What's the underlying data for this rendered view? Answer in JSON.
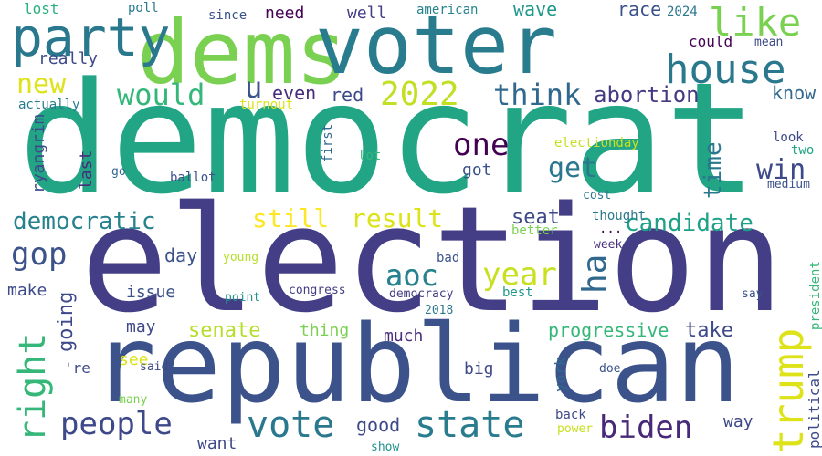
{
  "words": [
    {
      "text": "democrat",
      "color": "#21a585",
      "orient": "h"
    },
    {
      "text": "election",
      "color": "#433e85",
      "orient": "h"
    },
    {
      "text": "republican",
      "color": "#3b528b",
      "orient": "h"
    },
    {
      "text": "dems",
      "color": "#7ad151",
      "orient": "h"
    },
    {
      "text": "voter",
      "color": "#287c8e",
      "orient": "h"
    },
    {
      "text": "party",
      "color": "#2a788e",
      "orient": "h"
    },
    {
      "text": "house",
      "color": "#2a788e",
      "orient": "h"
    },
    {
      "text": "like",
      "color": "#7ad151",
      "orient": "h"
    },
    {
      "text": "new",
      "color": "#dde318",
      "orient": "h"
    },
    {
      "text": "would",
      "color": "#35b779",
      "orient": "h"
    },
    {
      "text": "u",
      "color": "#3b528b",
      "orient": "h"
    },
    {
      "text": "even",
      "color": "#472d7b",
      "orient": "h"
    },
    {
      "text": "red",
      "color": "#3e4989",
      "orient": "h"
    },
    {
      "text": "2022",
      "color": "#c2df23",
      "orient": "h"
    },
    {
      "text": "think",
      "color": "#31688e",
      "orient": "h"
    },
    {
      "text": "abortion",
      "color": "#443a83",
      "orient": "h"
    },
    {
      "text": "know",
      "color": "#31688e",
      "orient": "h"
    },
    {
      "text": "one",
      "color": "#440154",
      "orient": "h"
    },
    {
      "text": "get",
      "color": "#2a788e",
      "orient": "h"
    },
    {
      "text": "time",
      "color": "#2a788e",
      "orient": "v"
    },
    {
      "text": "win",
      "color": "#3e4989",
      "orient": "h"
    },
    {
      "text": "democratic",
      "color": "#26828e",
      "orient": "h"
    },
    {
      "text": "still",
      "color": "#fde725",
      "orient": "h"
    },
    {
      "text": "result",
      "color": "#dde318",
      "orient": "h"
    },
    {
      "text": "seat",
      "color": "#3e4989",
      "orient": "h"
    },
    {
      "text": "candidate",
      "color": "#1fa188",
      "orient": "h"
    },
    {
      "text": "gop",
      "color": "#3b528b",
      "orient": "h"
    },
    {
      "text": "aoc",
      "color": "#26828e",
      "orient": "h"
    },
    {
      "text": "year",
      "color": "#c8e020",
      "orient": "h"
    },
    {
      "text": "ha",
      "color": "#31688e",
      "orient": "v"
    },
    {
      "text": "trump",
      "color": "#dde318",
      "orient": "v"
    },
    {
      "text": "right",
      "color": "#35b779",
      "orient": "v"
    },
    {
      "text": "people",
      "color": "#3e4989",
      "orient": "h"
    },
    {
      "text": "vote",
      "color": "#2a788e",
      "orient": "h"
    },
    {
      "text": "state",
      "color": "#287c8e",
      "orient": "h"
    },
    {
      "text": "biden",
      "color": "#482878",
      "orient": "h"
    },
    {
      "text": "senate",
      "color": "#b5de2b",
      "orient": "h"
    },
    {
      "text": "progressive",
      "color": "#35b779",
      "orient": "h"
    },
    {
      "text": "take",
      "color": "#3e4989",
      "orient": "h"
    },
    {
      "text": "going",
      "color": "#3e4989",
      "orient": "v"
    },
    {
      "text": "make",
      "color": "#3e4989",
      "orient": "h"
    },
    {
      "text": "issue",
      "color": "#3b528b",
      "orient": "h"
    },
    {
      "text": "day",
      "color": "#3b528b",
      "orient": "h"
    },
    {
      "text": "aoc",
      "color": "#26828e",
      "orient": "h"
    },
    {
      "text": "lost",
      "color": "#2ab07f",
      "orient": "h"
    },
    {
      "text": "poll",
      "color": "#287c8e",
      "orient": "h"
    },
    {
      "text": "since",
      "color": "#3b528b",
      "orient": "h"
    },
    {
      "text": "need",
      "color": "#440154",
      "orient": "h"
    },
    {
      "text": "well",
      "color": "#433e85",
      "orient": "h"
    },
    {
      "text": "american",
      "color": "#26828e",
      "orient": "h"
    },
    {
      "text": "wave",
      "color": "#1f988b",
      "orient": "h"
    },
    {
      "text": "race",
      "color": "#3b528b",
      "orient": "h"
    },
    {
      "text": "2024",
      "color": "#2a788e",
      "orient": "h"
    },
    {
      "text": "could",
      "color": "#440154",
      "orient": "h"
    },
    {
      "text": "mean",
      "color": "#3e4989",
      "orient": "h"
    },
    {
      "text": "really",
      "color": "#3e4989",
      "orient": "h"
    },
    {
      "text": "actually",
      "color": "#287c8e",
      "orient": "h"
    },
    {
      "text": "turnout",
      "color": "#dde318",
      "orient": "h"
    },
    {
      "text": "ryangrim",
      "color": "#3e4989",
      "orient": "v"
    },
    {
      "text": "last",
      "color": "#472d7b",
      "orient": "v"
    },
    {
      "text": "first",
      "color": "#31688e",
      "orient": "v"
    },
    {
      "text": "lot",
      "color": "#35b779",
      "orient": "h"
    },
    {
      "text": "electionday",
      "color": "#c8e020",
      "orient": "h"
    },
    {
      "text": "look",
      "color": "#3e4989",
      "orient": "h"
    },
    {
      "text": "two",
      "color": "#21a585",
      "orient": "h"
    },
    {
      "text": "medium",
      "color": "#3b528b",
      "orient": "h"
    },
    {
      "text": "go",
      "color": "#31688e",
      "orient": "h"
    },
    {
      "text": "ballot",
      "color": "#3b528b",
      "orient": "h"
    },
    {
      "text": "got",
      "color": "#3b528b",
      "orient": "h"
    },
    {
      "text": "cost",
      "color": "#2a788e",
      "orient": "h"
    },
    {
      "text": "thought",
      "color": "#2a788e",
      "orient": "h"
    },
    {
      "text": "...",
      "color": "#440154",
      "orient": "h"
    },
    {
      "text": "better",
      "color": "#7ad151",
      "orient": "h"
    },
    {
      "text": "week",
      "color": "#472d7b",
      "orient": "h"
    },
    {
      "text": "young",
      "color": "#b5de2b",
      "orient": "h"
    },
    {
      "text": "bad",
      "color": "#3b528b",
      "orient": "h"
    },
    {
      "text": "point",
      "color": "#21918c",
      "orient": "h"
    },
    {
      "text": "congress",
      "color": "#433e85",
      "orient": "h"
    },
    {
      "text": "democracy",
      "color": "#433e85",
      "orient": "h"
    },
    {
      "text": "best",
      "color": "#1f988b",
      "orient": "h"
    },
    {
      "text": "say",
      "color": "#3b528b",
      "orient": "h"
    },
    {
      "text": "president",
      "color": "#35b779",
      "orient": "v"
    },
    {
      "text": "2018",
      "color": "#2a788e",
      "orient": "h"
    },
    {
      "text": "may",
      "color": "#3e4989",
      "orient": "h"
    },
    {
      "text": "thing",
      "color": "#7ad151",
      "orient": "h"
    },
    {
      "text": "much",
      "color": "#472d7b",
      "orient": "h"
    },
    {
      "text": "'re",
      "color": "#3e4989",
      "orient": "h"
    },
    {
      "text": "see",
      "color": "#dde318",
      "orient": "h"
    },
    {
      "text": "said",
      "color": "#3e4989",
      "orient": "h"
    },
    {
      "text": "many",
      "color": "#7ad151",
      "orient": "h"
    },
    {
      "text": "big",
      "color": "#3e4989",
      "orient": "h"
    },
    {
      "text": "york",
      "color": "#31688e",
      "orient": "v"
    },
    {
      "text": "doe",
      "color": "#3b528b",
      "orient": "h"
    },
    {
      "text": "political",
      "color": "#3e4989",
      "orient": "v"
    },
    {
      "text": "good",
      "color": "#3e4989",
      "orient": "h"
    },
    {
      "text": "back",
      "color": "#3e4989",
      "orient": "h"
    },
    {
      "text": "power",
      "color": "#c8e020",
      "orient": "h"
    },
    {
      "text": "show",
      "color": "#21918c",
      "orient": "h"
    },
    {
      "text": "way",
      "color": "#3e4989",
      "orient": "h"
    },
    {
      "text": "want",
      "color": "#3e4989",
      "orient": "h"
    }
  ]
}
